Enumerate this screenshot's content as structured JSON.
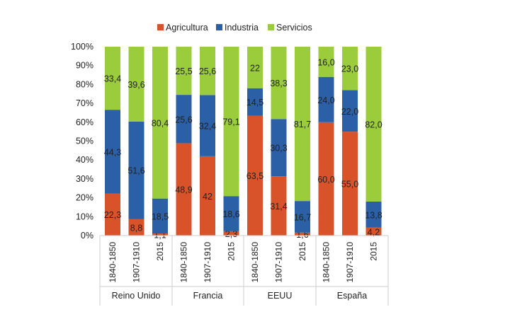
{
  "chart_data": {
    "type": "bar",
    "stacked": true,
    "percent": true,
    "groups": [
      "Reino Unido",
      "Francia",
      "EEUU",
      "España"
    ],
    "categories": [
      "1840-1850",
      "1907-1910",
      "2015",
      "1840-1850",
      "1907-1910",
      "2015",
      "1840-1850",
      "1907-1910",
      "2015",
      "1840-1850",
      "1907-1910",
      "2015"
    ],
    "series": [
      {
        "name": "Agricultura",
        "color": "#d8532a",
        "values": [
          22.3,
          8.8,
          1.1,
          48.9,
          42,
          2.3,
          63.5,
          31.4,
          1.6,
          60.0,
          55.0,
          4.2
        ],
        "labels": [
          "22,3",
          "8,8",
          "1,1",
          "48,9",
          "42",
          "2,3",
          "63,5",
          "31,4",
          "1,6",
          "60,0",
          "55,0",
          "4,2"
        ]
      },
      {
        "name": "Industria",
        "color": "#2b5fa6",
        "values": [
          44.3,
          51.6,
          18.5,
          25.6,
          32.4,
          18.6,
          14.5,
          30.3,
          16.7,
          24.0,
          22.0,
          13.8
        ],
        "labels": [
          "44,3",
          "51,6",
          "18,5",
          "25,6",
          "32,4",
          "18,6",
          "14,5",
          "30,3",
          "16,7",
          "24,0",
          "22,0",
          "13,8"
        ]
      },
      {
        "name": "Servicios",
        "color": "#9bcc3c",
        "values": [
          33.4,
          39.6,
          80.4,
          25.5,
          25.6,
          79.1,
          22,
          38.3,
          81.7,
          16.0,
          23.0,
          82.0
        ],
        "labels": [
          "33,4",
          "39,6",
          "80,4",
          "25,5",
          "25,6",
          "79,1",
          "22",
          "38,3",
          "81,7",
          "16,0",
          "23,0",
          "82,0"
        ]
      }
    ],
    "yticks": [
      "0%",
      "10%",
      "20%",
      "30%",
      "40%",
      "50%",
      "60%",
      "70%",
      "80%",
      "90%",
      "100%"
    ],
    "ylim": [
      0,
      100
    ],
    "legend": "top",
    "grid": false
  }
}
